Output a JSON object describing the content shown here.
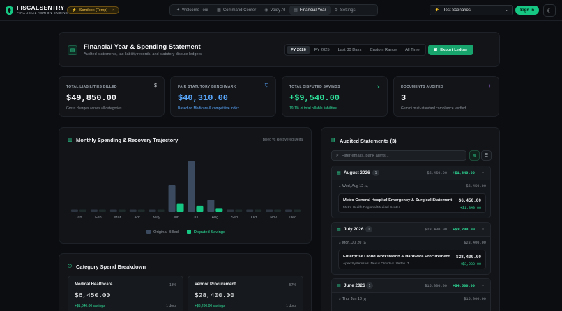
{
  "brand": {
    "name": "FISCALSENTRY",
    "tagline": "FINANCIAL ACTION ENGINE"
  },
  "sandbox": {
    "label": "Sandbox (Temp)",
    "close": "×"
  },
  "nav": {
    "tabs": [
      {
        "label": "Welcome Tour",
        "icon": "sparkle-icon"
      },
      {
        "label": "Command Center",
        "icon": "grid-icon"
      },
      {
        "label": "Voidy AI",
        "icon": "bot-icon"
      },
      {
        "label": "Financial Year",
        "icon": "calendar-icon",
        "active": true
      },
      {
        "label": "Settings",
        "icon": "gear-icon"
      }
    ]
  },
  "scenario": {
    "value": "Test Scenarios"
  },
  "auth": {
    "signin": "Sign In"
  },
  "header": {
    "title": "Financial Year & Spending Statement",
    "subtitle": "Audited statements, tax liability records, and statutory dispute ledgers",
    "periods": [
      "FY 2026",
      "FY 2025",
      "Last 30 Days",
      "Custom Range",
      "All Time"
    ],
    "active_period": "FY 2026",
    "export_label": "Export Ledger"
  },
  "stats": [
    {
      "label": "TOTAL LIABILITIES BILLED",
      "value": "$49,850.00",
      "desc": "Gross charges across all categories",
      "icon": "dollar-icon",
      "value_color": "#f3f5f7",
      "desc_color": "#8c939b",
      "icon_color": "#d0d4d9"
    },
    {
      "label": "FAIR STATUTORY BENCHMARK",
      "value": "$40,310.00",
      "desc": "Based on Medicare & competitive index",
      "icon": "shield-icon",
      "value_color": "#5aa9ff",
      "desc_color": "#5aa9ff",
      "icon_color": "#5aa9ff"
    },
    {
      "label": "TOTAL DISPUTED SAVINGS",
      "value": "+$9,540.00",
      "desc": "19.1% of total billable liabilities",
      "icon": "trend-down-icon",
      "value_color": "#2ee09a",
      "desc_color": "#2ee09a",
      "icon_color": "#2ee09a"
    },
    {
      "label": "DOCUMENTS AUDITED",
      "value": "3",
      "desc": "Gemini multi-standard compliance verified",
      "icon": "sparkle-icon",
      "value_color": "#f3f5f7",
      "desc_color": "#8c939b",
      "icon_color": "#b278ff"
    }
  ],
  "chart": {
    "title": "Monthly Spending & Recovery Trajectory",
    "note": "Billed vs Recovered Delta",
    "legend": [
      "Original Billed",
      "Disputed Savings"
    ]
  },
  "chart_data": {
    "type": "bar",
    "title": "Monthly Spending & Recovery Trajectory",
    "categories": [
      "Jan",
      "Feb",
      "Mar",
      "Apr",
      "May",
      "Jun",
      "Jul",
      "Aug",
      "Sep",
      "Oct",
      "Nov",
      "Dec"
    ],
    "series": [
      {
        "name": "Original Billed",
        "color": "#3b4a5e",
        "values": [
          0,
          0,
          0,
          0,
          0,
          15000,
          28400,
          6450,
          0,
          0,
          0,
          0
        ]
      },
      {
        "name": "Disputed Savings",
        "color": "#16c784",
        "values": [
          0,
          0,
          0,
          0,
          0,
          4500,
          3200,
          1840,
          0,
          0,
          0,
          0
        ]
      }
    ],
    "ylim": [
      0,
      30000
    ],
    "grid": false,
    "legend": "bottom"
  },
  "categories": {
    "title": "Category Spend Breakdown",
    "items": [
      {
        "name": "Medical Healthcare",
        "pct": "13%",
        "value": "$6,450.00",
        "savings": "+$1,840.00 savings",
        "docs": "1 docs"
      },
      {
        "name": "Vendor Procurement",
        "pct": "57%",
        "value": "$28,400.00",
        "savings": "+$3,200.00 savings",
        "docs": "1 docs"
      }
    ]
  },
  "statements": {
    "title": "Audited Statements (3)",
    "search_placeholder": "Filter emails, bank alerts...",
    "months": [
      {
        "name": "August 2026",
        "count": "1",
        "amount": "$6,450.00",
        "savings": "+$1,840.00",
        "day": "Wed, Aug 12",
        "day_count": "(1)",
        "day_amount": "$6,450.00",
        "item": {
          "name": "Metro General Hospital Emergency & Surgical Statement",
          "vendor": "Metro Health Regional Medical Center",
          "amount": "$6,450.00",
          "savings": "+$1,840.00"
        }
      },
      {
        "name": "July 2026",
        "count": "1",
        "amount": "$28,400.00",
        "savings": "+$3,200.00",
        "day": "Mon, Jul 20",
        "day_count": "(1)",
        "day_amount": "$28,400.00",
        "item": {
          "name": "Enterprise Cloud Workstation & Hardware Procurement",
          "vendor": "Apex Systems vs. Nexus Cloud vs. Vertex IT",
          "amount": "$28,400.00",
          "savings": "+$3,200.00"
        }
      },
      {
        "name": "June 2026",
        "count": "1",
        "amount": "$15,000.00",
        "savings": "+$4,500.00",
        "day": "Thu, Jun 18",
        "day_count": "(1)",
        "day_amount": "$15,000.00"
      }
    ]
  }
}
